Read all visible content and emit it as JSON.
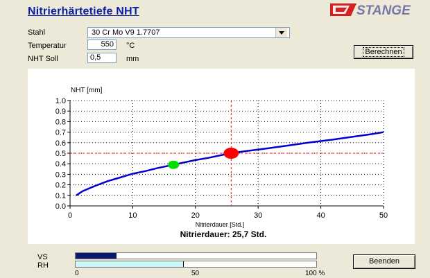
{
  "window": {
    "title": "Nitrierhärtetiefe NHT",
    "brand": "STANGE"
  },
  "form": {
    "stahl_label": "Stahl",
    "stahl_value": "30 Cr Mo V9  1.7707",
    "temperatur_label": "Temperatur",
    "temperatur_value": "550",
    "temperatur_unit": "°C",
    "nht_label": "NHT Soll",
    "nht_value": "0,5",
    "nht_unit": "mm"
  },
  "buttons": {
    "berechnen": "Berechnen",
    "beenden": "Beenden"
  },
  "result": {
    "text": "Nitrierdauer: 25,7  Std."
  },
  "progress": {
    "vs_label": "VS",
    "vs_fraction": 0.17,
    "rh_label": "RH",
    "rh_fraction": 0.45,
    "scale": [
      "0",
      "50",
      "100 %"
    ]
  },
  "colors": {
    "title": "#0a1fa8",
    "curve": "#0000cc",
    "target_marker": "#ff0000",
    "secondary_marker": "#00dd00",
    "vs_bar": "#0a1a6e",
    "rh_bar": "#c8f8f8"
  },
  "chart_data": {
    "type": "line",
    "ylabel": "NHT [mm]",
    "xlabel": "Nitrierdauer [Std.]",
    "xlim": [
      0,
      50
    ],
    "ylim": [
      0,
      1.0
    ],
    "xticks": [
      0,
      10,
      20,
      30,
      40,
      50
    ],
    "yticks": [
      0.0,
      0.1,
      0.2,
      0.3,
      0.4,
      0.5,
      0.6,
      0.7,
      0.8,
      0.9,
      1.0
    ],
    "ytick_labels": [
      "0.0",
      "0.1",
      "0.2",
      "0.3",
      "0.4",
      "0.5",
      "0.6",
      "0.7",
      "0.8",
      "0.9",
      "1.0"
    ],
    "grid": true,
    "series": [
      {
        "x": [
          1,
          2,
          4,
          6,
          8,
          10,
          12,
          14,
          16.5,
          18,
          20,
          22,
          24,
          25.7,
          28,
          30,
          32,
          35,
          38,
          40,
          42,
          45,
          48,
          50
        ],
        "y": [
          0.1,
          0.14,
          0.19,
          0.235,
          0.27,
          0.305,
          0.33,
          0.36,
          0.39,
          0.41,
          0.435,
          0.455,
          0.48,
          0.5,
          0.52,
          0.535,
          0.55,
          0.575,
          0.6,
          0.615,
          0.63,
          0.655,
          0.68,
          0.7
        ]
      }
    ],
    "markers": [
      {
        "x": 25.7,
        "y": 0.5,
        "color": "red"
      },
      {
        "x": 16.5,
        "y": 0.39,
        "color": "green"
      }
    ],
    "reference_lines": {
      "x": 25.7,
      "y": 0.5
    }
  }
}
